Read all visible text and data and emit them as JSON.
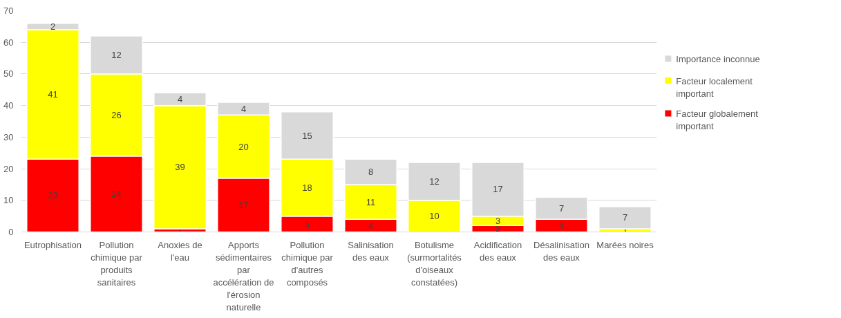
{
  "chart_data": {
    "type": "bar",
    "stacked": true,
    "categories": [
      "Eutrophisation",
      "Pollution chimique par produits sanitaires",
      "Anoxies de l'eau",
      "Apports sédimentaires par accélération de l'érosion naturelle",
      "Pollution chimique par d'autres composés",
      "Salinisation des eaux",
      "Botulisme (surmortalités d'oiseaux constatées)",
      "Acidification des eaux",
      "Désalinisation des eaux",
      "Marées noires"
    ],
    "series": [
      {
        "name": "Facteur globalement important",
        "color": "#ff0000",
        "values": [
          23,
          24,
          1,
          17,
          5,
          4,
          null,
          2,
          4,
          null
        ]
      },
      {
        "name": "Facteur localement important",
        "color": "#ffff00",
        "values": [
          41,
          26,
          39,
          20,
          18,
          11,
          10,
          3,
          null,
          1
        ]
      },
      {
        "name": "Importance inconnue",
        "color": "#d9d9d9",
        "values": [
          2,
          12,
          4,
          4,
          15,
          8,
          12,
          17,
          7,
          7
        ]
      }
    ],
    "ylim": [
      0,
      70
    ],
    "yticks": [
      0,
      10,
      20,
      30,
      40,
      50,
      60,
      70
    ],
    "grid": "y",
    "legend": "right",
    "data_labels": true
  }
}
